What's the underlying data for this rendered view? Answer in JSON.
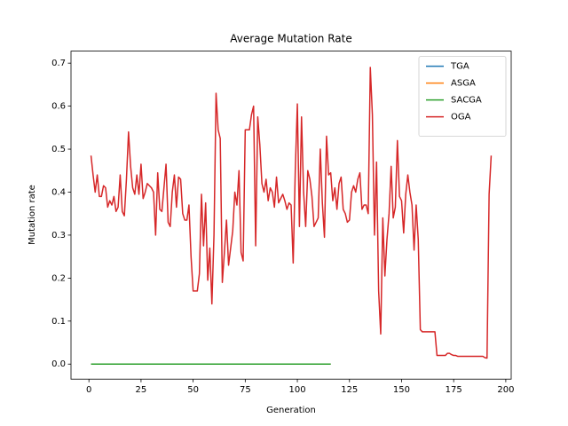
{
  "chart_data": {
    "type": "line",
    "title": "Average Mutation Rate",
    "x_label": "Generation",
    "y_label": "Mutation rate",
    "xlim": [
      -8.6,
      202.6
    ],
    "ylim": [
      -0.035,
      0.728
    ],
    "xticks": [
      0,
      25,
      50,
      75,
      100,
      125,
      150,
      175,
      200
    ],
    "yticks": [
      {
        "value": 0,
        "label": "0.0"
      },
      0.1,
      0.2,
      0.3,
      0.4,
      0.5,
      0.6,
      0.7
    ],
    "legend": "upper right",
    "series": [
      {
        "name": "TGA",
        "color": "#1f77b4",
        "x": [
          1,
          116
        ],
        "values": [
          0,
          0
        ]
      },
      {
        "name": "ASGA",
        "color": "#ff7f0e",
        "x": [
          1,
          116
        ],
        "values": [
          0,
          0
        ]
      },
      {
        "name": "SACGA",
        "color": "#2ca02c",
        "x": [
          1,
          116
        ],
        "values": [
          0,
          0
        ]
      },
      {
        "name": "OGA",
        "color": "#d62728",
        "x": [
          1,
          2,
          3,
          4,
          5,
          6,
          7,
          8,
          9,
          10,
          11,
          12,
          13,
          14,
          15,
          16,
          17,
          18,
          19,
          20,
          21,
          22,
          23,
          24,
          25,
          26,
          27,
          28,
          29,
          30,
          31,
          32,
          33,
          34,
          35,
          36,
          37,
          38,
          39,
          40,
          41,
          42,
          43,
          44,
          45,
          46,
          47,
          48,
          49,
          50,
          51,
          52,
          53,
          54,
          55,
          56,
          57,
          58,
          59,
          60,
          61,
          62,
          63,
          64,
          65,
          66,
          67,
          68,
          69,
          70,
          71,
          72,
          73,
          74,
          75,
          76,
          77,
          78,
          79,
          80,
          81,
          82,
          83,
          84,
          85,
          86,
          87,
          88,
          89,
          90,
          91,
          92,
          93,
          94,
          95,
          96,
          97,
          98,
          99,
          100,
          101,
          102,
          103,
          104,
          105,
          106,
          107,
          108,
          109,
          110,
          111,
          112,
          113,
          114,
          115,
          116,
          117,
          118,
          119,
          120,
          121,
          122,
          123,
          124,
          125,
          126,
          127,
          128,
          129,
          130,
          131,
          132,
          133,
          134,
          135,
          136,
          137,
          138,
          139,
          140,
          141,
          142,
          143,
          144,
          145,
          146,
          147,
          148,
          149,
          150,
          151,
          152,
          153,
          154,
          155,
          156,
          157,
          158,
          159,
          160,
          161,
          162,
          163,
          164,
          165,
          166,
          167,
          168,
          169,
          170,
          171,
          172,
          173,
          174,
          175,
          176,
          177,
          178,
          179,
          180,
          181,
          182,
          183,
          184,
          185,
          186,
          187,
          188,
          189,
          190,
          191,
          192,
          193
        ],
        "values": [
          0.485,
          0.44,
          0.4,
          0.44,
          0.39,
          0.39,
          0.415,
          0.41,
          0.365,
          0.38,
          0.37,
          0.39,
          0.355,
          0.365,
          0.44,
          0.355,
          0.345,
          0.43,
          0.54,
          0.46,
          0.41,
          0.395,
          0.44,
          0.395,
          0.465,
          0.385,
          0.4,
          0.42,
          0.415,
          0.41,
          0.4,
          0.3,
          0.445,
          0.36,
          0.355,
          0.41,
          0.465,
          0.33,
          0.32,
          0.4,
          0.44,
          0.365,
          0.435,
          0.43,
          0.35,
          0.335,
          0.335,
          0.37,
          0.25,
          0.17,
          0.17,
          0.17,
          0.21,
          0.395,
          0.275,
          0.375,
          0.195,
          0.27,
          0.14,
          0.3,
          0.63,
          0.545,
          0.525,
          0.19,
          0.26,
          0.335,
          0.23,
          0.27,
          0.31,
          0.4,
          0.37,
          0.45,
          0.26,
          0.24,
          0.545,
          0.545,
          0.545,
          0.58,
          0.6,
          0.275,
          0.575,
          0.51,
          0.42,
          0.4,
          0.43,
          0.38,
          0.41,
          0.4,
          0.365,
          0.435,
          0.375,
          0.385,
          0.395,
          0.38,
          0.36,
          0.375,
          0.37,
          0.235,
          0.45,
          0.605,
          0.32,
          0.575,
          0.4,
          0.32,
          0.45,
          0.43,
          0.39,
          0.32,
          0.33,
          0.34,
          0.5,
          0.375,
          0.295,
          0.53,
          0.44,
          0.445,
          0.38,
          0.41,
          0.36,
          0.42,
          0.435,
          0.36,
          0.35,
          0.33,
          0.335,
          0.4,
          0.415,
          0.4,
          0.43,
          0.445,
          0.36,
          0.37,
          0.37,
          0.35,
          0.69,
          0.58,
          0.3,
          0.47,
          0.17,
          0.07,
          0.34,
          0.205,
          0.29,
          0.35,
          0.46,
          0.34,
          0.365,
          0.52,
          0.39,
          0.38,
          0.305,
          0.395,
          0.44,
          0.4,
          0.37,
          0.265,
          0.37,
          0.29,
          0.08,
          0.075,
          0.075,
          0.075,
          0.075,
          0.075,
          0.075,
          0.075,
          0.02,
          0.02,
          0.02,
          0.02,
          0.02,
          0.025,
          0.025,
          0.022,
          0.02,
          0.02,
          0.018,
          0.018,
          0.018,
          0.018,
          0.018,
          0.018,
          0.018,
          0.018,
          0.018,
          0.018,
          0.018,
          0.018,
          0.018,
          0.015,
          0.014,
          0.395,
          0.485
        ]
      }
    ]
  }
}
